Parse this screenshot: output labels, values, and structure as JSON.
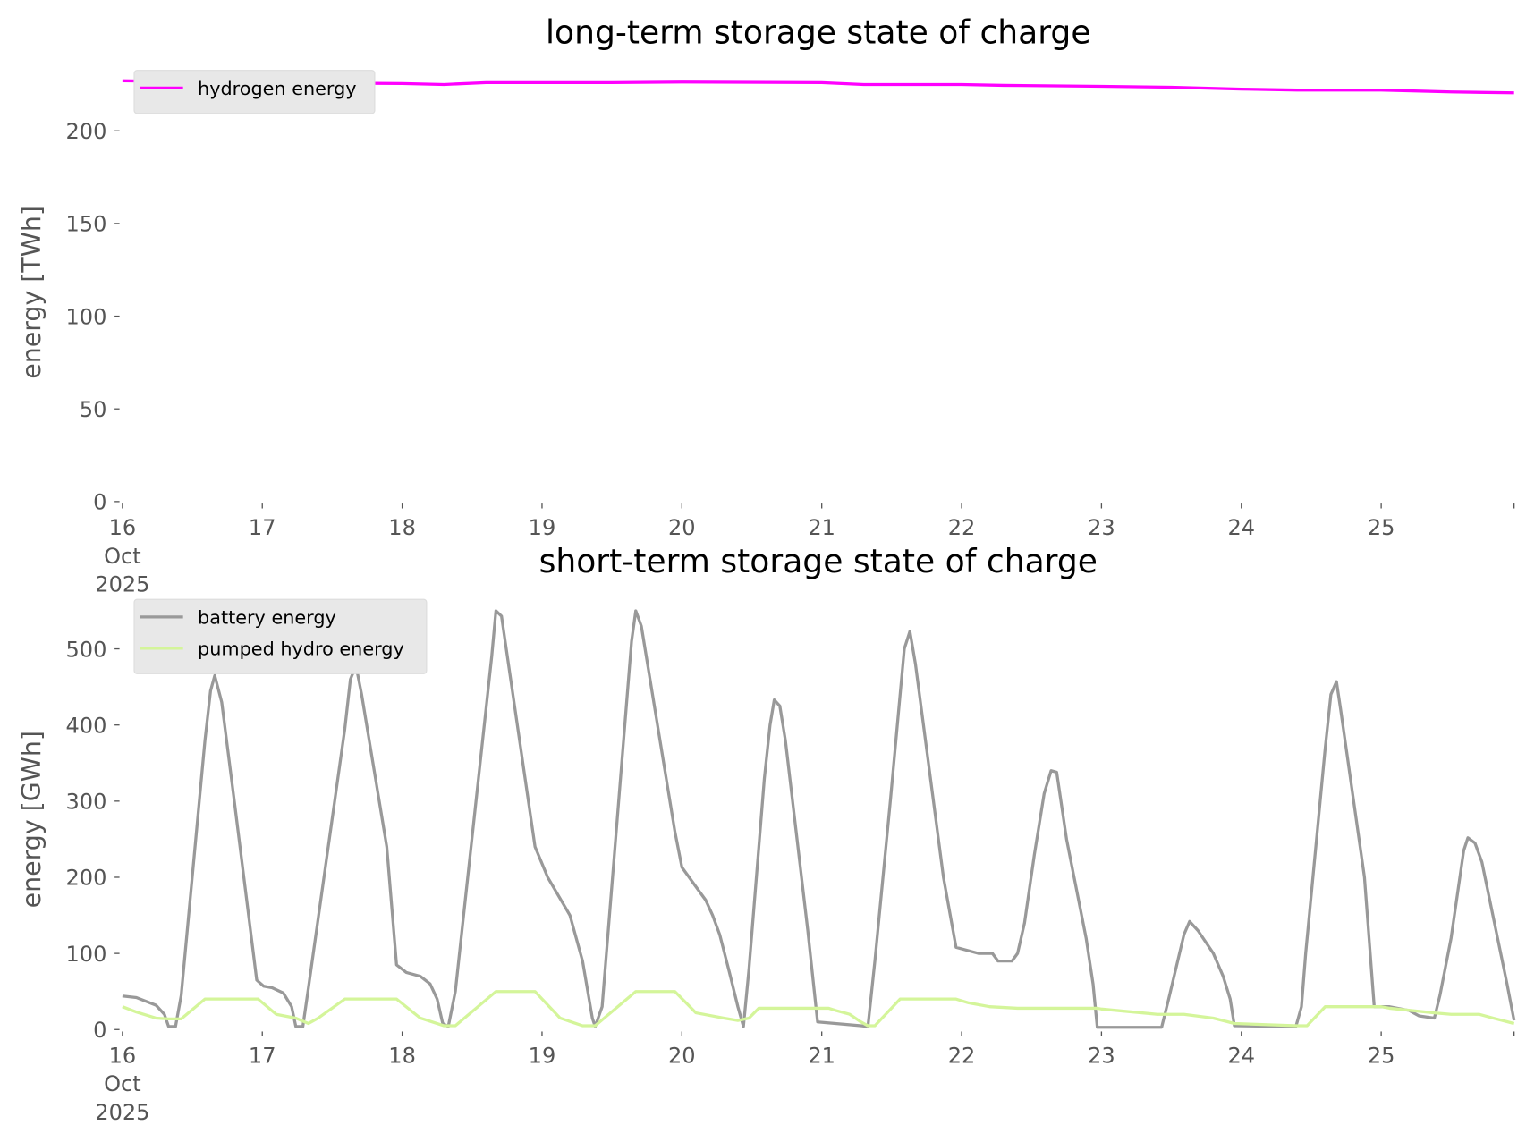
{
  "chart_data": [
    {
      "type": "line",
      "title": "long-term storage state of charge",
      "xlabel": "",
      "ylabel": "energy [TWh]",
      "x_unit": "days since 16 Oct 2025 00:00",
      "xlim": [
        0,
        9.95
      ],
      "ylim": [
        0,
        231
      ],
      "yticks": [
        "0",
        "50",
        "100",
        "150",
        "200"
      ],
      "ytick_values": [
        0,
        50,
        100,
        150,
        200
      ],
      "xticks": [
        "16",
        "17",
        "18",
        "19",
        "20",
        "21",
        "22",
        "23",
        "24",
        "25"
      ],
      "xtick_first_extra": [
        "Oct",
        "2025"
      ],
      "grid": false,
      "legend_position": "top-left",
      "series": [
        {
          "name": "hydrogen energy",
          "color": "#ff00ff",
          "points": [
            [
              0,
              227
            ],
            [
              1,
              226
            ],
            [
              2,
              225.5
            ],
            [
              2.3,
              225
            ],
            [
              2.6,
              226
            ],
            [
              3.5,
              226
            ],
            [
              4,
              226.3
            ],
            [
              5,
              226
            ],
            [
              5.3,
              225
            ],
            [
              6,
              225
            ],
            [
              6.3,
              224.5
            ],
            [
              7,
              224
            ],
            [
              7.5,
              223.5
            ],
            [
              8,
              222.5
            ],
            [
              8.4,
              222
            ],
            [
              9,
              222
            ],
            [
              9.5,
              221
            ],
            [
              9.95,
              220.5
            ]
          ]
        }
      ]
    },
    {
      "type": "line",
      "title": "short-term storage state of charge",
      "xlabel": "",
      "ylabel": "energy [GWh]",
      "x_unit": "days since 16 Oct 2025 00:00",
      "xlim": [
        0,
        9.95
      ],
      "ylim": [
        0,
        565
      ],
      "yticks": [
        "0",
        "100",
        "200",
        "300",
        "400",
        "500"
      ],
      "ytick_values": [
        0,
        100,
        200,
        300,
        400,
        500
      ],
      "xticks": [
        "16",
        "17",
        "18",
        "19",
        "20",
        "21",
        "22",
        "23",
        "24",
        "25"
      ],
      "xtick_first_extra": [
        "Oct",
        "2025"
      ],
      "grid": false,
      "legend_position": "top-left",
      "series": [
        {
          "name": "battery energy",
          "color": "#999999",
          "points": [
            [
              0,
              44
            ],
            [
              0.1,
              42
            ],
            [
              0.24,
              32
            ],
            [
              0.3,
              20
            ],
            [
              0.33,
              4
            ],
            [
              0.38,
              4
            ],
            [
              0.42,
              45
            ],
            [
              0.59,
              380
            ],
            [
              0.63,
              445
            ],
            [
              0.66,
              465
            ],
            [
              0.71,
              430
            ],
            [
              0.8,
              300
            ],
            [
              0.96,
              65
            ],
            [
              1.01,
              57
            ],
            [
              1.07,
              55
            ],
            [
              1.15,
              48
            ],
            [
              1.21,
              30
            ],
            [
              1.24,
              4
            ],
            [
              1.29,
              4
            ],
            [
              1.33,
              55
            ],
            [
              1.59,
              395
            ],
            [
              1.63,
              460
            ],
            [
              1.67,
              478
            ],
            [
              1.71,
              440
            ],
            [
              1.89,
              240
            ],
            [
              1.96,
              85
            ],
            [
              2.03,
              75
            ],
            [
              2.13,
              70
            ],
            [
              2.2,
              60
            ],
            [
              2.25,
              40
            ],
            [
              2.29,
              8
            ],
            [
              2.33,
              4
            ],
            [
              2.38,
              50
            ],
            [
              2.64,
              490
            ],
            [
              2.67,
              550
            ],
            [
              2.71,
              543
            ],
            [
              2.95,
              240
            ],
            [
              3.04,
              200
            ],
            [
              3.2,
              150
            ],
            [
              3.29,
              90
            ],
            [
              3.36,
              15
            ],
            [
              3.38,
              4
            ],
            [
              3.43,
              30
            ],
            [
              3.64,
              510
            ],
            [
              3.67,
              550
            ],
            [
              3.71,
              530
            ],
            [
              3.95,
              260
            ],
            [
              4.0,
              213
            ],
            [
              4.13,
              180
            ],
            [
              4.17,
              170
            ],
            [
              4.22,
              150
            ],
            [
              4.27,
              125
            ],
            [
              4.34,
              75
            ],
            [
              4.4,
              30
            ],
            [
              4.44,
              4
            ],
            [
              4.48,
              80
            ],
            [
              4.59,
              330
            ],
            [
              4.63,
              400
            ],
            [
              4.66,
              433
            ],
            [
              4.7,
              425
            ],
            [
              4.74,
              380
            ],
            [
              4.9,
              130
            ],
            [
              4.97,
              10
            ],
            [
              5.28,
              5
            ],
            [
              5.33,
              4
            ],
            [
              5.38,
              90
            ],
            [
              5.49,
              300
            ],
            [
              5.59,
              500
            ],
            [
              5.63,
              523
            ],
            [
              5.67,
              480
            ],
            [
              5.87,
              200
            ],
            [
              5.96,
              108
            ],
            [
              6.12,
              100
            ],
            [
              6.22,
              100
            ],
            [
              6.26,
              90
            ],
            [
              6.36,
              90
            ],
            [
              6.4,
              100
            ],
            [
              6.45,
              140
            ],
            [
              6.52,
              230
            ],
            [
              6.59,
              310
            ],
            [
              6.64,
              340
            ],
            [
              6.68,
              338
            ],
            [
              6.75,
              250
            ],
            [
              6.89,
              120
            ],
            [
              6.94,
              60
            ],
            [
              6.97,
              3
            ],
            [
              7.43,
              3
            ],
            [
              7.48,
              40
            ],
            [
              7.59,
              125
            ],
            [
              7.63,
              142
            ],
            [
              7.69,
              130
            ],
            [
              7.8,
              100
            ],
            [
              7.87,
              70
            ],
            [
              7.92,
              40
            ],
            [
              7.95,
              5
            ],
            [
              8.39,
              4
            ],
            [
              8.43,
              30
            ],
            [
              8.46,
              100
            ],
            [
              8.6,
              370
            ],
            [
              8.64,
              440
            ],
            [
              8.68,
              457
            ],
            [
              8.71,
              420
            ],
            [
              8.88,
              200
            ],
            [
              8.95,
              30
            ],
            [
              9.06,
              30
            ],
            [
              9.2,
              25
            ],
            [
              9.27,
              18
            ],
            [
              9.38,
              15
            ],
            [
              9.42,
              45
            ],
            [
              9.5,
              120
            ],
            [
              9.59,
              235
            ],
            [
              9.62,
              252
            ],
            [
              9.67,
              245
            ],
            [
              9.72,
              220
            ],
            [
              9.9,
              60
            ],
            [
              9.95,
              12
            ]
          ]
        },
        {
          "name": "pumped hydro energy",
          "color": "#d4f59a",
          "points": [
            [
              0,
              30
            ],
            [
              0.1,
              23
            ],
            [
              0.24,
              15
            ],
            [
              0.33,
              14
            ],
            [
              0.42,
              14
            ],
            [
              0.59,
              40
            ],
            [
              0.97,
              40
            ],
            [
              1.1,
              20
            ],
            [
              1.24,
              15
            ],
            [
              1.33,
              8
            ],
            [
              1.4,
              15
            ],
            [
              1.59,
              40
            ],
            [
              1.96,
              40
            ],
            [
              2.13,
              15
            ],
            [
              2.3,
              5
            ],
            [
              2.38,
              5
            ],
            [
              2.67,
              50
            ],
            [
              2.95,
              50
            ],
            [
              3.13,
              15
            ],
            [
              3.29,
              5
            ],
            [
              3.38,
              5
            ],
            [
              3.67,
              50
            ],
            [
              3.95,
              50
            ],
            [
              4.1,
              22
            ],
            [
              4.3,
              15
            ],
            [
              4.4,
              12
            ],
            [
              4.48,
              15
            ],
            [
              4.55,
              28
            ],
            [
              4.97,
              28
            ],
            [
              5.05,
              28
            ],
            [
              5.1,
              25
            ],
            [
              5.2,
              20
            ],
            [
              5.28,
              10
            ],
            [
              5.33,
              5
            ],
            [
              5.38,
              5
            ],
            [
              5.56,
              40
            ],
            [
              5.96,
              40
            ],
            [
              6.05,
              35
            ],
            [
              6.2,
              30
            ],
            [
              6.4,
              28
            ],
            [
              6.97,
              28
            ],
            [
              7.0,
              27
            ],
            [
              7.4,
              20
            ],
            [
              7.59,
              20
            ],
            [
              7.8,
              15
            ],
            [
              7.95,
              8
            ],
            [
              8.4,
              5
            ],
            [
              8.47,
              5
            ],
            [
              8.6,
              30
            ],
            [
              9.0,
              30
            ],
            [
              9.06,
              28
            ],
            [
              9.38,
              22
            ],
            [
              9.5,
              20
            ],
            [
              9.7,
              20
            ],
            [
              9.8,
              15
            ],
            [
              9.95,
              8
            ]
          ]
        }
      ]
    }
  ]
}
